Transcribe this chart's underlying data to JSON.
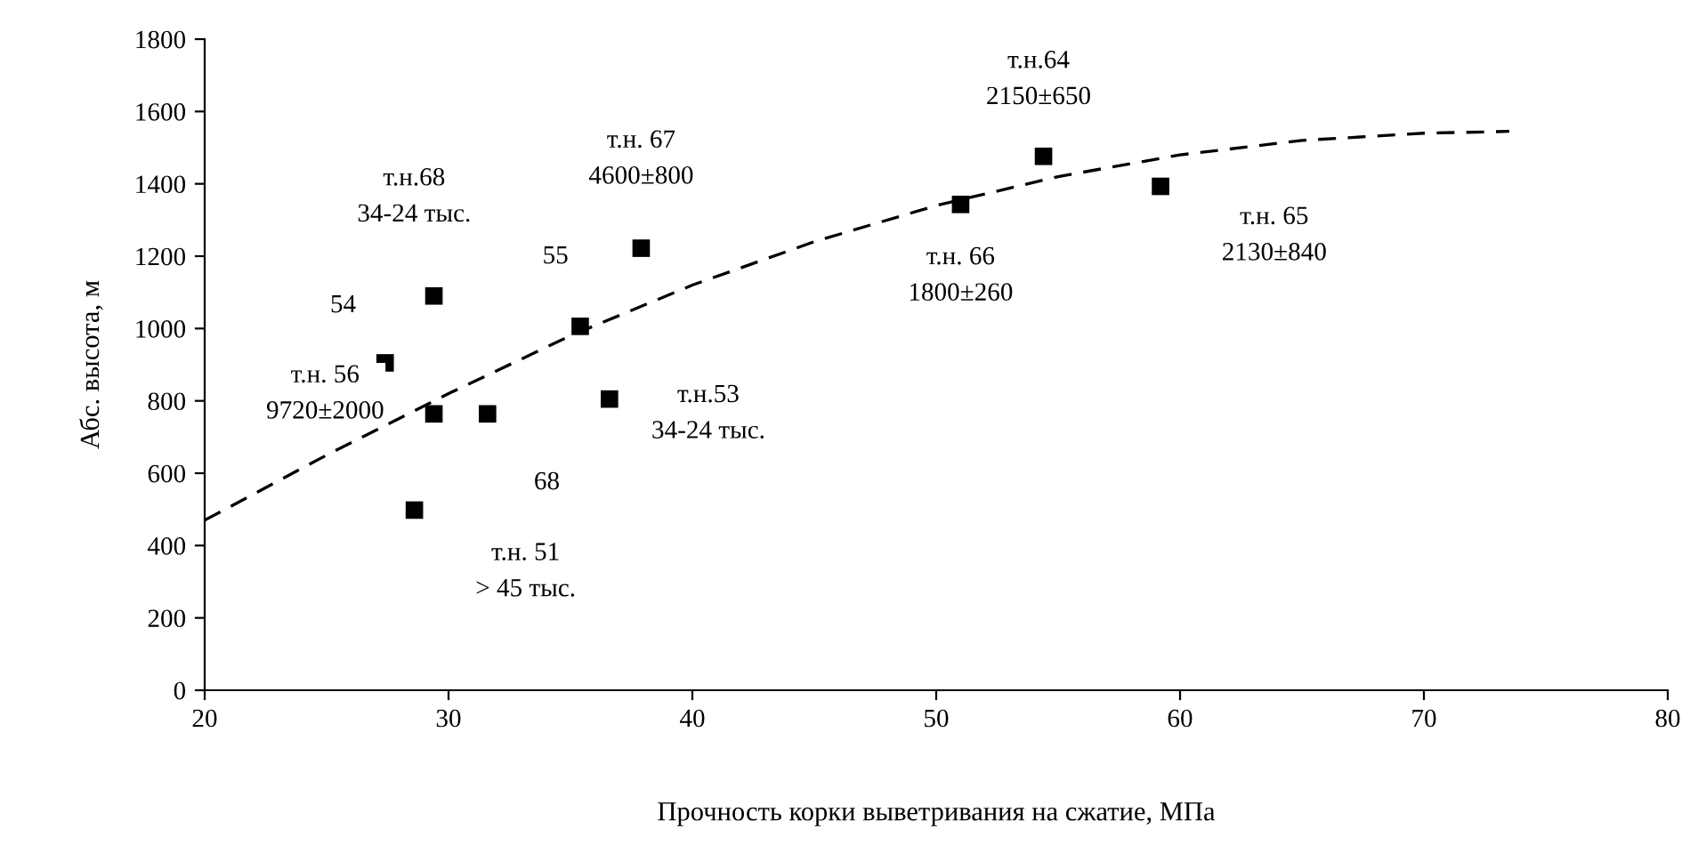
{
  "chart_data": {
    "type": "scatter",
    "xlabel": "Прочность корки выветривания на сжатие, МПа",
    "ylabel": "Абс. высота, м",
    "xlim": [
      20,
      80
    ],
    "xticks": [
      20,
      30,
      40,
      50,
      60,
      70,
      80
    ],
    "ylim": [
      0,
      1800
    ],
    "yticks": [
      0,
      200,
      400,
      600,
      800,
      1000,
      1200,
      1400,
      1600,
      1800
    ],
    "grid": false,
    "legend": false,
    "series": [
      {
        "color": "#000000",
        "marker": "square",
        "x": [
          27.4,
          29.4,
          35.4,
          37.9,
          29.4,
          31.6,
          36.6,
          28.6,
          51.0,
          54.4,
          59.2
        ],
        "values": [
          905,
          1090,
          1006,
          1222,
          764,
          764,
          805,
          498,
          1343,
          1476,
          1393
        ]
      },
      {
        "type": "line",
        "color": "#000000",
        "marker": "none",
        "line_style": "dashed",
        "x": [
          20,
          25,
          30,
          35,
          40,
          45,
          50,
          55,
          60,
          65,
          70,
          73.5
        ],
        "values": [
          470,
          650,
          820,
          980,
          1120,
          1240,
          1340,
          1420,
          1480,
          1520,
          1540,
          1545
        ]
      }
    ],
    "annotations": [
      {
        "text": "т.н.68\n34-24 тыс.",
        "x": 29.4,
        "y": 1090
      },
      {
        "text": "54",
        "x": 27.4,
        "y": 905
      },
      {
        "text": "55",
        "x": 35.4,
        "y": 1006
      },
      {
        "text": "т.н. 67\n4600±800",
        "x": 37.9,
        "y": 1222
      },
      {
        "text": "т.н.53\n34-24 тыс.",
        "x": 36.6,
        "y": 805
      },
      {
        "text": "т.н. 56\n9720±2000",
        "x": 29.4,
        "y": 764
      },
      {
        "text": "68",
        "x": 31.6,
        "y": 764
      },
      {
        "text": "т.н. 51\n> 45 тыс.",
        "x": 28.6,
        "y": 498
      },
      {
        "text": "т.н.64\n2150±650",
        "x": 54.4,
        "y": 1476
      },
      {
        "text": "т.н. 66\n1800±260",
        "x": 51.0,
        "y": 1343
      },
      {
        "text": "т.н. 65\n2130±840",
        "x": 59.2,
        "y": 1393
      }
    ]
  }
}
